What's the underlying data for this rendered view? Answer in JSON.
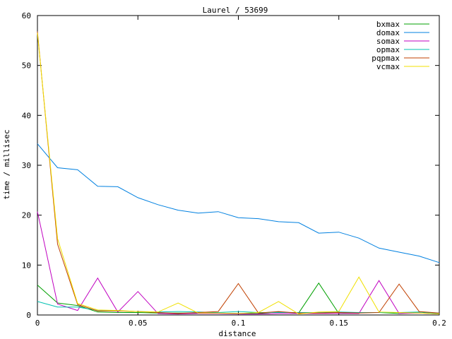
{
  "chart_data": {
    "type": "line",
    "title": "Laurel / 53699",
    "xlabel": "distance",
    "ylabel": "time / millisec",
    "xlim": [
      0,
      0.2
    ],
    "ylim": [
      0,
      60
    ],
    "xticks": [
      "0",
      "0.05",
      "0.1",
      "0.15",
      "0.2"
    ],
    "yticks": [
      "0",
      "10",
      "20",
      "30",
      "40",
      "50",
      "60"
    ],
    "grid": false,
    "legend_position": "top-right",
    "x": [
      0,
      0.01,
      0.02,
      0.03,
      0.04,
      0.05,
      0.06,
      0.07,
      0.08,
      0.09,
      0.1,
      0.11,
      0.12,
      0.13,
      0.14,
      0.15,
      0.16,
      0.17,
      0.18,
      0.19,
      0.2
    ],
    "series": [
      {
        "name": "bxmax",
        "color": "#00a000",
        "values": [
          6.0,
          2.4,
          1.9,
          0.6,
          0.5,
          0.5,
          0.4,
          0.4,
          0.4,
          0.4,
          0.3,
          0.3,
          0.6,
          0.4,
          6.4,
          0.3,
          0.5,
          0.5,
          0.3,
          0.6,
          0.2
        ]
      },
      {
        "name": "domax",
        "color": "#0080e0",
        "values": [
          34.3,
          29.5,
          29.1,
          25.8,
          25.7,
          23.5,
          22.1,
          21.0,
          20.4,
          20.7,
          19.5,
          19.3,
          18.7,
          18.5,
          16.4,
          16.6,
          15.4,
          13.4,
          12.6,
          11.8,
          10.5
        ]
      },
      {
        "name": "somax",
        "color": "#c000c0",
        "values": [
          20.7,
          2.2,
          0.9,
          7.4,
          0.6,
          4.7,
          0.3,
          0.2,
          0.3,
          0.3,
          0.2,
          0.2,
          0.3,
          0.3,
          0.3,
          0.3,
          0.3,
          6.9,
          0.3,
          0.4,
          0.2
        ]
      },
      {
        "name": "opmax",
        "color": "#00c0b0",
        "values": [
          2.7,
          1.6,
          1.6,
          0.9,
          0.8,
          0.7,
          0.6,
          0.7,
          0.6,
          0.5,
          0.7,
          0.5,
          0.5,
          0.5,
          0.5,
          0.6,
          0.5,
          0.5,
          0.5,
          0.6,
          0.3
        ]
      },
      {
        "name": "pqpmax",
        "color": "#c04000",
        "values": [
          56.8,
          14.2,
          2.1,
          0.8,
          0.8,
          0.7,
          0.5,
          0.3,
          0.5,
          0.7,
          6.3,
          0.4,
          0.7,
          0.4,
          0.4,
          0.5,
          0.4,
          0.5,
          6.2,
          0.7,
          0.4
        ]
      },
      {
        "name": "vcmax",
        "color": "#f0e000",
        "values": [
          56.5,
          15.3,
          2.3,
          1.0,
          0.9,
          0.7,
          0.6,
          2.4,
          0.4,
          0.4,
          0.3,
          0.5,
          2.7,
          0.2,
          0.6,
          0.7,
          7.6,
          0.6,
          0.5,
          0.4,
          0.2
        ]
      }
    ]
  }
}
